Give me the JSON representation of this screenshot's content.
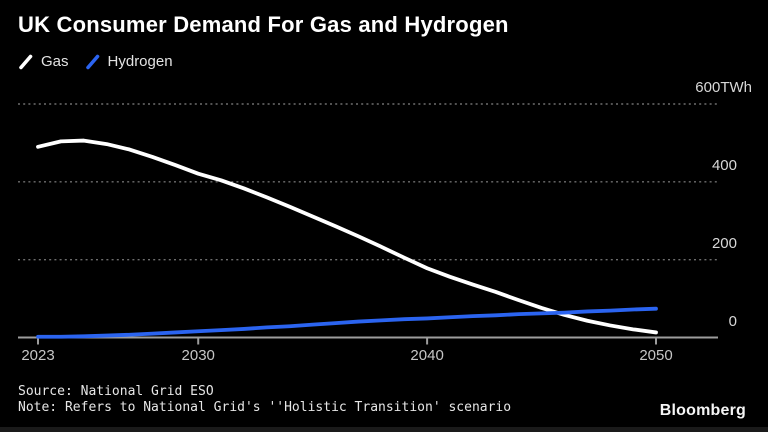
{
  "title": "UK Consumer Demand For Gas and Hydrogen",
  "legend": {
    "items": [
      {
        "label": "Gas",
        "color": "#ffffff"
      },
      {
        "label": "Hydrogen",
        "color": "#2b64f0"
      }
    ]
  },
  "chart_data": {
    "type": "line",
    "title": "UK Consumer Demand For Gas and Hydrogen",
    "x": [
      2023,
      2024,
      2025,
      2026,
      2027,
      2028,
      2029,
      2030,
      2031,
      2032,
      2033,
      2034,
      2035,
      2036,
      2037,
      2038,
      2039,
      2040,
      2041,
      2042,
      2043,
      2044,
      2045,
      2046,
      2047,
      2048,
      2049,
      2050
    ],
    "series": [
      {
        "name": "Gas",
        "color": "#ffffff",
        "values": [
          490,
          504,
          506,
          497,
          483,
          464,
          443,
          421,
          404,
          383,
          360,
          336,
          311,
          286,
          260,
          233,
          205,
          178,
          156,
          136,
          117,
          96,
          76,
          58,
          43,
          31,
          21,
          13
        ]
      },
      {
        "name": "Hydrogen",
        "color": "#2b64f0",
        "values": [
          2,
          2,
          3,
          5,
          7,
          10,
          13,
          16,
          19,
          22,
          26,
          29,
          33,
          37,
          41,
          44,
          47,
          49,
          52,
          55,
          57,
          60,
          62,
          64,
          67,
          69,
          72,
          74
        ]
      }
    ],
    "ylabel": "",
    "xlabel": "",
    "y_unit": "TWh",
    "y_ticks": [
      600,
      400,
      200,
      0
    ],
    "x_ticks": [
      2023,
      2030,
      2040,
      2050
    ],
    "ylim": [
      0,
      600
    ],
    "xlim": [
      2023,
      2050
    ],
    "grid": "horizontal-dotted",
    "legend_position": "top-left",
    "axis_color": "#9d9d9d",
    "grid_color": "#6e6e6e",
    "tick_label_color": "#d8d8d8"
  },
  "footer": {
    "source": "Source: National Grid ESO",
    "note": "Note: Refers to National Grid's ''Holistic Transition' scenario",
    "brand": "Bloomberg"
  }
}
